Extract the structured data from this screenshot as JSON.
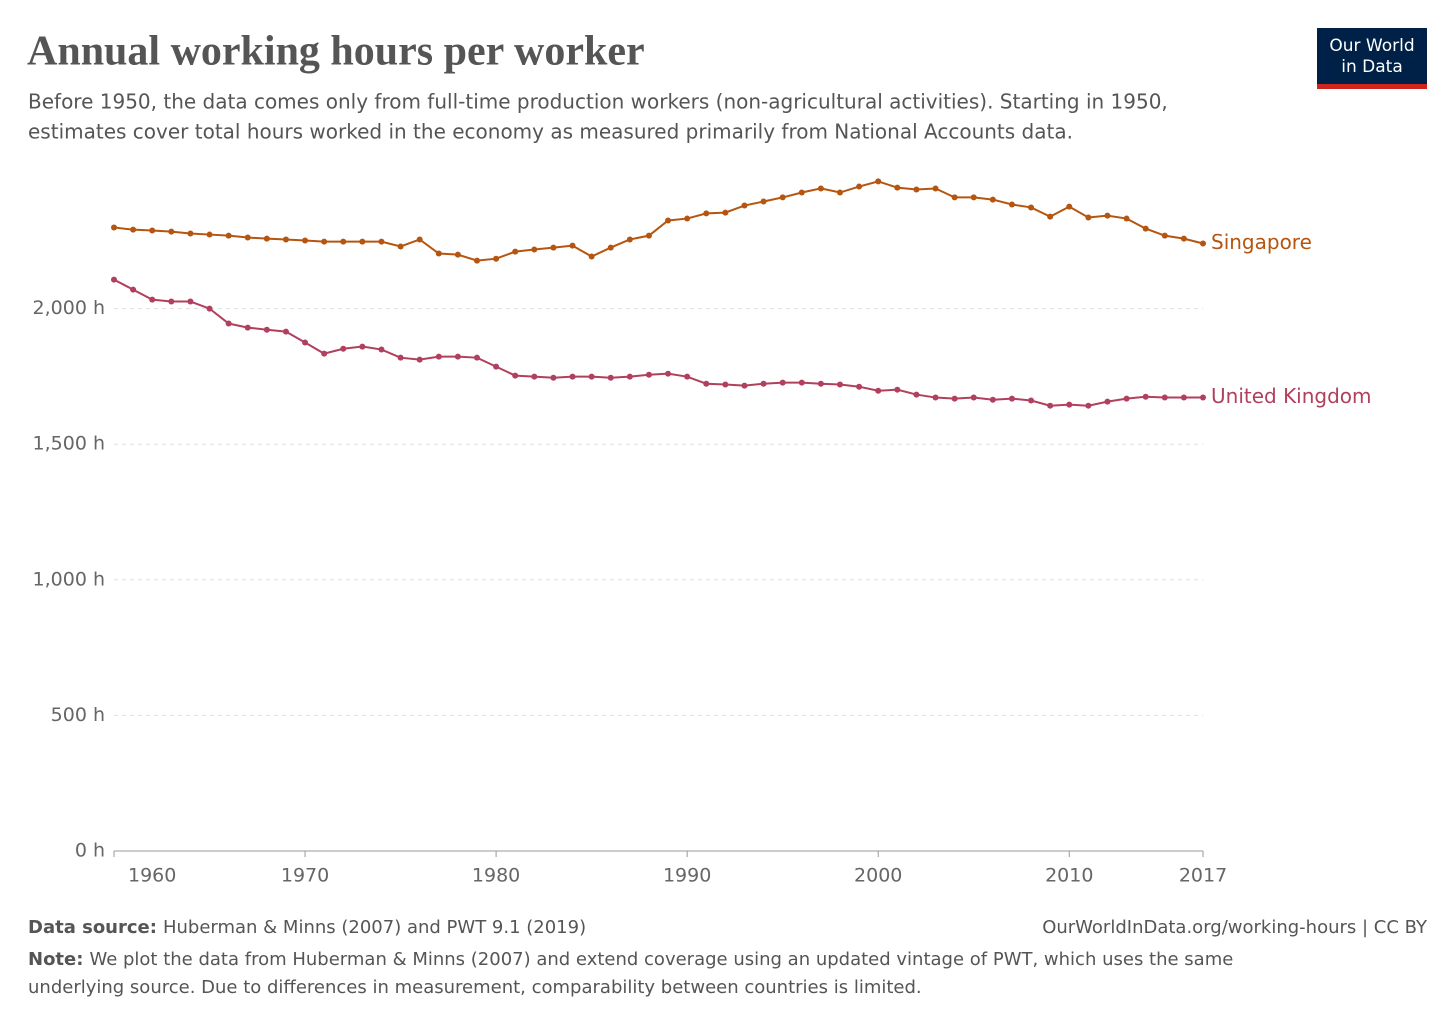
{
  "header": {
    "logo": [
      "Our World",
      "in Data"
    ]
  },
  "chart_data": {
    "type": "line",
    "title": "Annual working hours per worker",
    "subtitle": [
      "Before 1950, the data comes only from full-time production workers (non-agricultural activities). Starting in 1950,",
      "estimates cover total hours worked in the economy as measured primarily from National Accounts data."
    ],
    "x": [
      1960,
      1961,
      1962,
      1963,
      1964,
      1965,
      1966,
      1967,
      1968,
      1969,
      1970,
      1971,
      1972,
      1973,
      1974,
      1975,
      1976,
      1977,
      1978,
      1979,
      1980,
      1981,
      1982,
      1983,
      1984,
      1985,
      1986,
      1987,
      1988,
      1989,
      1990,
      1991,
      1992,
      1993,
      1994,
      1995,
      1996,
      1997,
      1998,
      1999,
      2000,
      2001,
      2002,
      2003,
      2004,
      2005,
      2006,
      2007,
      2008,
      2009,
      2010,
      2011,
      2012,
      2013,
      2014,
      2015,
      2016,
      2017
    ],
    "series": [
      {
        "name": "Singapore",
        "color": "#b5550f",
        "values": [
          2299,
          2291,
          2288,
          2284,
          2277,
          2273,
          2269,
          2262,
          2258,
          2255,
          2251,
          2247,
          2247,
          2247,
          2247,
          2229,
          2255,
          2203,
          2199,
          2177,
          2184,
          2210,
          2218,
          2225,
          2232,
          2192,
          2225,
          2255,
          2269,
          2325,
          2332,
          2351,
          2354,
          2380,
          2395,
          2410,
          2428,
          2443,
          2428,
          2450,
          2469,
          2446,
          2439,
          2443,
          2410,
          2410,
          2402,
          2384,
          2373,
          2339,
          2376,
          2336,
          2343,
          2332,
          2295,
          2269,
          2258,
          2240
        ]
      },
      {
        "name": "United Kingdom",
        "color": "#b13f5e",
        "values": [
          2107,
          2070,
          2033,
          2026,
          2026,
          2000,
          1945,
          1930,
          1922,
          1915,
          1875,
          1834,
          1852,
          1860,
          1849,
          1819,
          1812,
          1823,
          1823,
          1819,
          1786,
          1753,
          1749,
          1745,
          1749,
          1749,
          1745,
          1749,
          1756,
          1760,
          1749,
          1723,
          1720,
          1716,
          1723,
          1727,
          1727,
          1723,
          1720,
          1712,
          1697,
          1701,
          1683,
          1672,
          1668,
          1672,
          1664,
          1668,
          1661,
          1642,
          1646,
          1642,
          1657,
          1668,
          1675,
          1672,
          1672,
          1672
        ]
      }
    ],
    "xlim": [
      1960,
      2017
    ],
    "xticks": [
      1960,
      1970,
      1980,
      1990,
      2000,
      2010,
      2017
    ],
    "ylim": [
      0,
      2500
    ],
    "yticks": [
      {
        "value": 0,
        "label": "0 h"
      },
      {
        "value": 500,
        "label": "500 h"
      },
      {
        "value": 1000,
        "label": "1,000 h"
      },
      {
        "value": 1500,
        "label": "1,500 h"
      },
      {
        "value": 2000,
        "label": "2,000 h"
      }
    ],
    "grid": true,
    "source_label": "Data source:",
    "source": "Huberman & Minns (2007) and PWT 9.1 (2019)",
    "url": "OurWorldInData.org/working-hours | CC BY",
    "note_label": "Note:",
    "note": [
      "We plot the data from Huberman & Minns (2007) and extend coverage using an updated vintage of PWT, which uses the same",
      "underlying source. Due to differences in measurement, comparability between countries is limited."
    ]
  }
}
